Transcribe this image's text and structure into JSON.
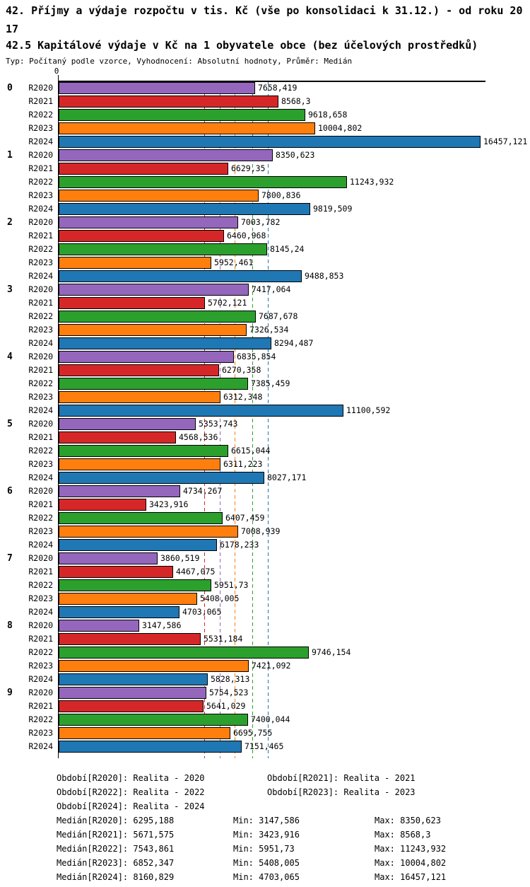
{
  "header": {
    "title": "42. Příjmy a výdaje rozpočtu v tis. Kč (vše po konsolidaci k 31.12.) - od roku 2017",
    "subtitle": "42.5 Kapitálové výdaje v Kč na 1 obyvatele obce (bez účelových prostředků)",
    "meta": "Typ: Počítaný podle vzorce, Vyhodnocení: Absolutní hodnoty, Průměr: Medián"
  },
  "chart_data": {
    "type": "bar",
    "orientation": "horizontal",
    "title": "42.5 Kapitálové výdaje v Kč na 1 obyvatele obce (bez účelových prostředků)",
    "value_axis_tick": "0",
    "xlim": [
      0,
      16650
    ],
    "grid": "off",
    "series": [
      {
        "name": "R2020",
        "color": "#9467bd"
      },
      {
        "name": "R2021",
        "color": "#d62728"
      },
      {
        "name": "R2022",
        "color": "#2ca02c"
      },
      {
        "name": "R2023",
        "color": "#ff7f0e"
      },
      {
        "name": "R2024",
        "color": "#1f77b4"
      }
    ],
    "categories": [
      "0",
      "1",
      "2",
      "3",
      "4",
      "5",
      "6",
      "7",
      "8",
      "9"
    ],
    "groups": [
      {
        "label": "0",
        "values": [
          7658.419,
          8568.3,
          9618.658,
          10004.802,
          16457.121
        ],
        "value_labels": [
          "7658,419",
          "8568,3",
          "9618,658",
          "10004,802",
          "16457,121"
        ]
      },
      {
        "label": "1",
        "values": [
          8350.623,
          6629.35,
          11243.932,
          7800.836,
          9819.509
        ],
        "value_labels": [
          "8350,623",
          "6629,35",
          "11243,932",
          "7800,836",
          "9819,509"
        ]
      },
      {
        "label": "2",
        "values": [
          7003.782,
          6460.968,
          8145.24,
          5952.461,
          9488.853
        ],
        "value_labels": [
          "7003,782",
          "6460,968",
          "8145,24",
          "5952,461",
          "9488,853"
        ]
      },
      {
        "label": "3",
        "values": [
          7417.064,
          5702.121,
          7687.678,
          7326.534,
          8294.487
        ],
        "value_labels": [
          "7417,064",
          "5702,121",
          "7687,678",
          "7326,534",
          "8294,487"
        ]
      },
      {
        "label": "4",
        "values": [
          6835.854,
          6270.358,
          7385.459,
          6312.348,
          11100.592
        ],
        "value_labels": [
          "6835,854",
          "6270,358",
          "7385,459",
          "6312,348",
          "11100,592"
        ]
      },
      {
        "label": "5",
        "values": [
          5353.743,
          4568.536,
          6615.044,
          6311.223,
          8027.171
        ],
        "value_labels": [
          "5353,743",
          "4568,536",
          "6615,044",
          "6311,223",
          "8027,171"
        ]
      },
      {
        "label": "6",
        "values": [
          4734.267,
          3423.916,
          6407.459,
          7008.939,
          6178.233
        ],
        "value_labels": [
          "4734,267",
          "3423,916",
          "6407,459",
          "7008,939",
          "6178,233"
        ]
      },
      {
        "label": "7",
        "values": [
          3860.519,
          4467.075,
          5951.73,
          5408.005,
          4703.065
        ],
        "value_labels": [
          "3860,519",
          "4467,075",
          "5951,73",
          "5408,005",
          "4703,065"
        ]
      },
      {
        "label": "8",
        "values": [
          3147.586,
          5531.184,
          9746.154,
          7421.092,
          5828.313
        ],
        "value_labels": [
          "3147,586",
          "5531,184",
          "9746,154",
          "7421,092",
          "5828,313"
        ]
      },
      {
        "label": "9",
        "values": [
          5754.523,
          5641.029,
          7400.044,
          6695.755,
          7151.465
        ],
        "value_labels": [
          "5754,523",
          "5641,029",
          "7400,044",
          "6695,755",
          "7151,465"
        ]
      }
    ],
    "medians": [
      {
        "series": "R2020",
        "value": 6295.188,
        "color": "#9467bd"
      },
      {
        "series": "R2021",
        "value": 5671.575,
        "color": "#d62728"
      },
      {
        "series": "R2022",
        "value": 7543.861,
        "color": "#2ca02c"
      },
      {
        "series": "R2023",
        "value": 6852.347,
        "color": "#ff7f0e"
      },
      {
        "series": "R2024",
        "value": 8160.829,
        "color": "#1f77b4"
      }
    ]
  },
  "legend": {
    "period_rows": [
      [
        "Období[R2020]: Realita - 2020",
        "Období[R2021]: Realita - 2021"
      ],
      [
        "Období[R2022]: Realita - 2022",
        "Období[R2023]: Realita - 2023"
      ],
      [
        "Období[R2024]: Realita - 2024"
      ]
    ],
    "stat_rows": [
      [
        "Medián[R2020]: 6295,188",
        "Min: 3147,586",
        "Max: 8350,623"
      ],
      [
        "Medián[R2021]: 5671,575",
        "Min: 3423,916",
        "Max: 8568,3"
      ],
      [
        "Medián[R2022]: 7543,861",
        "Min: 5951,73",
        "Max: 11243,932"
      ],
      [
        "Medián[R2023]: 6852,347",
        "Min: 5408,005",
        "Max: 10004,802"
      ],
      [
        "Medián[R2024]: 8160,829",
        "Min: 4703,065",
        "Max: 16457,121"
      ]
    ]
  }
}
